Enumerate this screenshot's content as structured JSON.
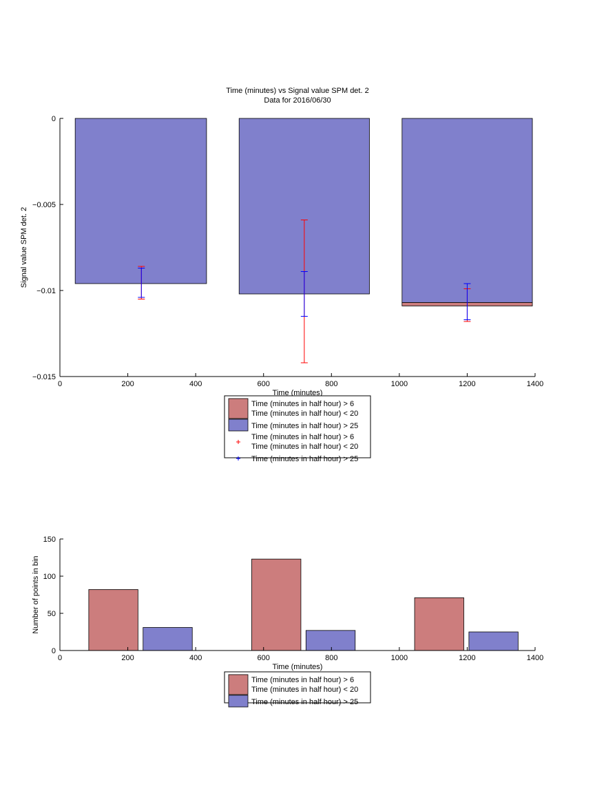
{
  "chart_data": [
    {
      "type": "bar",
      "title": [
        "Time (minutes) vs Signal value SPM det. 2",
        "Data for 2016/06/30"
      ],
      "xlabel": "Time (minutes)",
      "ylabel": "Signal value SPM det. 2",
      "xlim": [
        0,
        1400
      ],
      "ylim": [
        -0.015,
        0
      ],
      "xticks": [
        0,
        200,
        400,
        600,
        800,
        1000,
        1200,
        1400
      ],
      "xtick_labels": [
        "0",
        "200",
        "400",
        "600",
        "800",
        "1000",
        "1200",
        "1400"
      ],
      "yticks": [
        -0.015,
        -0.01,
        -0.005,
        0
      ],
      "ytick_labels": [
        "−0.015",
        "−0.01",
        "−0.005",
        "0"
      ],
      "grid": false,
      "legend_position": "below-center",
      "bars": [
        {
          "series": "Time (minutes in half hour) > 25",
          "x_start": 45,
          "x_end": 432,
          "value": -0.0096
        },
        {
          "series": "Time (minutes in half hour) > 25",
          "x_start": 528,
          "x_end": 912,
          "value": -0.0102
        },
        {
          "series": "Time (minutes in half hour) > 25",
          "x_start": 1008,
          "x_end": 1392,
          "value": -0.0107
        },
        {
          "series": "Time (minutes in half hour) > 6 Time (minutes in half hour) < 20",
          "x_start": 1008,
          "x_end": 1392,
          "value_from": -0.0107,
          "value_to": -0.0109
        }
      ],
      "errorbars": [
        {
          "series": "Time (minutes in half hour) > 6 Time (minutes in half hour) < 20",
          "color": "#ff0000",
          "points": [
            {
              "x": 240,
              "mean": -0.0096,
              "low": -0.0105,
              "high": -0.0086
            },
            {
              "x": 720,
              "mean": -0.01,
              "low": -0.0142,
              "high": -0.0059
            },
            {
              "x": 1200,
              "mean": -0.0099,
              "low": -0.0118,
              "high": -0.0099
            }
          ]
        },
        {
          "series": "Time (minutes in half hour) > 25",
          "color": "#0000ff",
          "points": [
            {
              "x": 240,
              "mean": -0.0096,
              "low": -0.0104,
              "high": -0.0087
            },
            {
              "x": 720,
              "mean": -0.0102,
              "low": -0.0115,
              "high": -0.0089
            },
            {
              "x": 1200,
              "mean": -0.0106,
              "low": -0.0117,
              "high": -0.0096
            }
          ]
        }
      ],
      "legend": [
        {
          "kind": "patch",
          "color": "#cc7d7d",
          "lines": [
            "Time (minutes in half hour) > 6",
            "Time (minutes in half hour) < 20"
          ]
        },
        {
          "kind": "patch",
          "color": "#8080cc",
          "lines": [
            "Time (minutes in half hour) > 25"
          ]
        },
        {
          "kind": "marker",
          "color": "#ff0000",
          "lines": [
            "Time (minutes in half hour) > 6",
            "Time (minutes in half hour) < 20"
          ]
        },
        {
          "kind": "marker",
          "color": "#0000ff",
          "lines": [
            "Time (minutes in half hour) > 25"
          ]
        }
      ]
    },
    {
      "type": "bar",
      "title": [],
      "xlabel": "Time (minutes)",
      "ylabel": "Number of points in bin",
      "xlim": [
        0,
        1400
      ],
      "ylim": [
        0,
        150
      ],
      "xticks": [
        0,
        200,
        400,
        600,
        800,
        1000,
        1200,
        1400
      ],
      "xtick_labels": [
        "0",
        "200",
        "400",
        "600",
        "800",
        "1000",
        "1200",
        "1400"
      ],
      "yticks": [
        0,
        50,
        100,
        150
      ],
      "ytick_labels": [
        "0",
        "50",
        "100",
        "150"
      ],
      "grid": false,
      "legend_position": "below-center",
      "bars": [
        {
          "series": "Time (minutes in half hour) > 6 Time (minutes in half hour) < 20",
          "x_start": 85,
          "x_end": 230,
          "value": 82
        },
        {
          "series": "Time (minutes in half hour) > 25",
          "x_start": 245,
          "x_end": 390,
          "value": 31
        },
        {
          "series": "Time (minutes in half hour) > 6 Time (minutes in half hour) < 20",
          "x_start": 565,
          "x_end": 710,
          "value": 123
        },
        {
          "series": "Time (minutes in half hour) > 25",
          "x_start": 725,
          "x_end": 870,
          "value": 27
        },
        {
          "series": "Time (minutes in half hour) > 6 Time (minutes in half hour) < 20",
          "x_start": 1045,
          "x_end": 1190,
          "value": 71
        },
        {
          "series": "Time (minutes in half hour) > 25",
          "x_start": 1205,
          "x_end": 1350,
          "value": 25
        }
      ],
      "errorbars": [],
      "legend": [
        {
          "kind": "patch",
          "color": "#cc7d7d",
          "lines": [
            "Time (minutes in half hour) > 6",
            "Time (minutes in half hour) < 20"
          ]
        },
        {
          "kind": "patch",
          "color": "#8080cc",
          "lines": [
            "Time (minutes in half hour) > 25"
          ]
        }
      ]
    }
  ],
  "colors": {
    "series_a": "#cc7d7d",
    "series_b": "#8080cc",
    "err_a": "#ff0000",
    "err_b": "#0000ff"
  }
}
